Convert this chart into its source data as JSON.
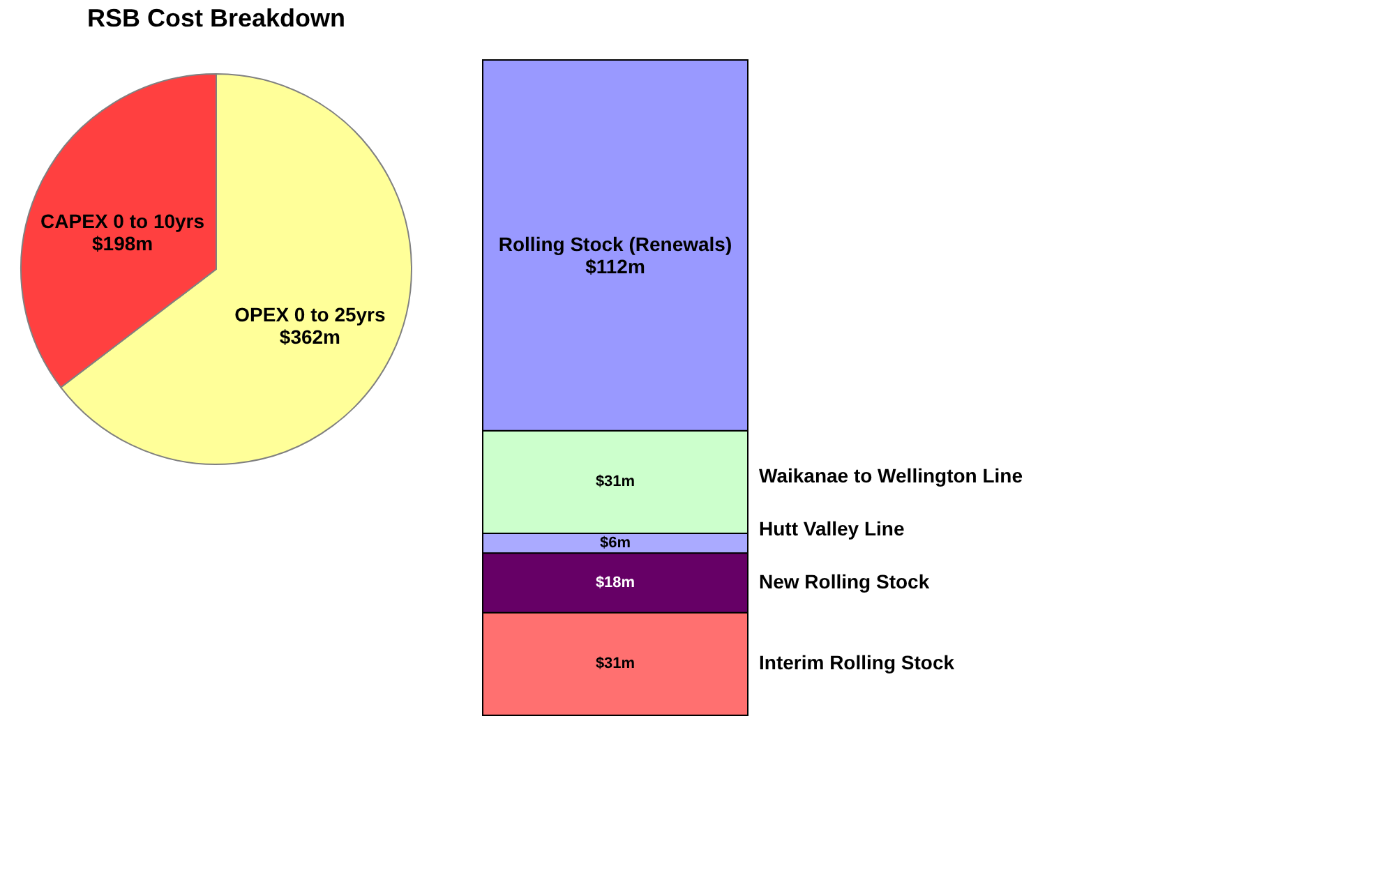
{
  "chart_data": [
    {
      "type": "pie",
      "title": "RSB Cost Breakdown",
      "categories": [
        "OPEX 0 to 25yrs",
        "CAPEX 0 to 10yrs"
      ],
      "values": [
        362,
        198
      ],
      "value_labels": [
        "$362m",
        "$198m"
      ],
      "colors": [
        "#ffff99",
        "#ff4040"
      ],
      "legend": false
    },
    {
      "type": "bar",
      "stacked": true,
      "categories": [
        null
      ],
      "legend": false,
      "series": [
        {
          "name": "Interim Rolling Stock",
          "color": "#ff7070",
          "values": [
            31
          ],
          "value_labels": [
            "$31m"
          ]
        },
        {
          "name": "New Rolling Stock",
          "color": "#660066",
          "values": [
            18
          ],
          "value_labels": [
            "$18m"
          ]
        },
        {
          "name": "Hutt Valley Line",
          "color": "#aaaaff",
          "values": [
            6
          ],
          "value_labels": [
            "$6m"
          ]
        },
        {
          "name": "Waikanae to Wellington Line",
          "color": "#ccffcc",
          "values": [
            31
          ],
          "value_labels": [
            "$31m"
          ]
        },
        {
          "name": "Rolling Stock (Renewals)",
          "color": "#9999ff",
          "values": [
            112
          ],
          "value_labels": [
            "$112m"
          ]
        }
      ]
    }
  ]
}
